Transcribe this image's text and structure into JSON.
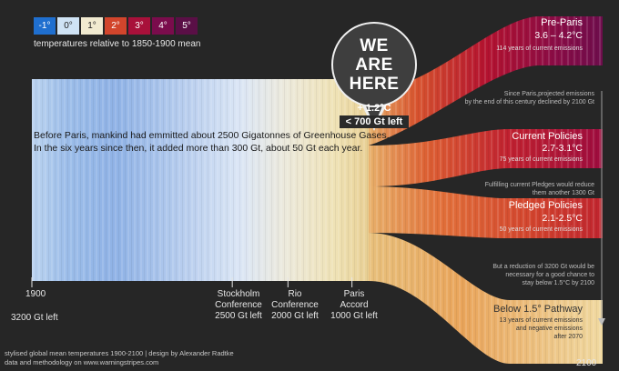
{
  "legend": {
    "items": [
      {
        "label": "-1°",
        "color": "#1f6fcf"
      },
      {
        "label": "0°",
        "color": "#cfe3f5"
      },
      {
        "label": "1°",
        "color": "#f1ead0"
      },
      {
        "label": "2°",
        "color": "#d2452c"
      },
      {
        "label": "3°",
        "color": "#a8103a"
      },
      {
        "label": "4°",
        "color": "#7a0c4c"
      },
      {
        "label": "5°",
        "color": "#5a0f46"
      }
    ],
    "caption": "temperatures relative to 1850-1900 mean"
  },
  "here": {
    "line1": "WE",
    "line2": "ARE",
    "line3": "HERE",
    "temp": "+ 1.2°C",
    "budget": "< 700 Gt left"
  },
  "intro": {
    "line1": "Before Paris, mankind had emmitted about 2500 Gigatonnes of Greenhouse Gases.",
    "line2": "In the six years since then, it added more than 300 Gt, about 50 Gt each year."
  },
  "milestones": [
    {
      "l1": "1900",
      "l2": "3200 Gt left"
    },
    {
      "l1": "Stockholm",
      "l2": "Conference",
      "l3": "2500 Gt left"
    },
    {
      "l1": "Rio",
      "l2": "Conference",
      "l3": "2000 Gt left"
    },
    {
      "l1": "Paris",
      "l2": "Accord",
      "l3": "1000 Gt left"
    }
  ],
  "end_year": "2100",
  "scenarios": [
    {
      "title": "Pre-Paris",
      "range": "3.6 – 4.2°C",
      "note": "114 years of current emissions"
    },
    {
      "title": "Current Policies",
      "range": "2.7-3.1°C",
      "note": "75 years of current emissions"
    },
    {
      "title": "Pledged Policies",
      "range": "2.1-2.5°C",
      "note": "50 years of current emissions"
    },
    {
      "title": "Below 1.5° Pathway",
      "note1": "13 years of current emissions",
      "note2": "and negative emissions",
      "note3": "after 2070"
    }
  ],
  "side_notes": [
    {
      "l1": "Since Paris,projected emissions",
      "l2": "by the end of this century declined by 2100 Gt"
    },
    {
      "l1": "Fulfilling current Pledges would reduce",
      "l2": "them another 1300 Gt"
    },
    {
      "l1": "But a reduction of 3200 Gt would be",
      "l2": "necessary for a good chance to",
      "l3": "stay below  1.5°C by 2100"
    }
  ],
  "footer": {
    "line1": "stylised global mean temperatures 1900-2100 | design by Alexander Radtke",
    "line2": "data and methodology on www.warningstripes.com"
  },
  "chart_data": {
    "type": "area",
    "x_start": 1900,
    "x_now": 2021,
    "x_end": 2100,
    "color_scale_celsius": [
      -1,
      0,
      1,
      2,
      3,
      4,
      5
    ],
    "current_warming_celsius": 1.2,
    "budget_gt_left": {
      "1900": 3200,
      "1972": 2500,
      "1992": 2000,
      "2015": 1000,
      "2021": 700
    },
    "scenarios": [
      {
        "name": "Pre-Paris",
        "temp_range": [
          3.6,
          4.2
        ],
        "years_of_current_emissions": 114
      },
      {
        "name": "Current Policies",
        "temp_range": [
          2.7,
          3.1
        ],
        "years_of_current_emissions": 75
      },
      {
        "name": "Pledged Policies",
        "temp_range": [
          2.1,
          2.5
        ],
        "years_of_current_emissions": 50
      },
      {
        "name": "Below 1.5° Pathway",
        "temp_range": [
          1.2,
          1.5
        ],
        "years_of_current_emissions": 13
      }
    ]
  }
}
